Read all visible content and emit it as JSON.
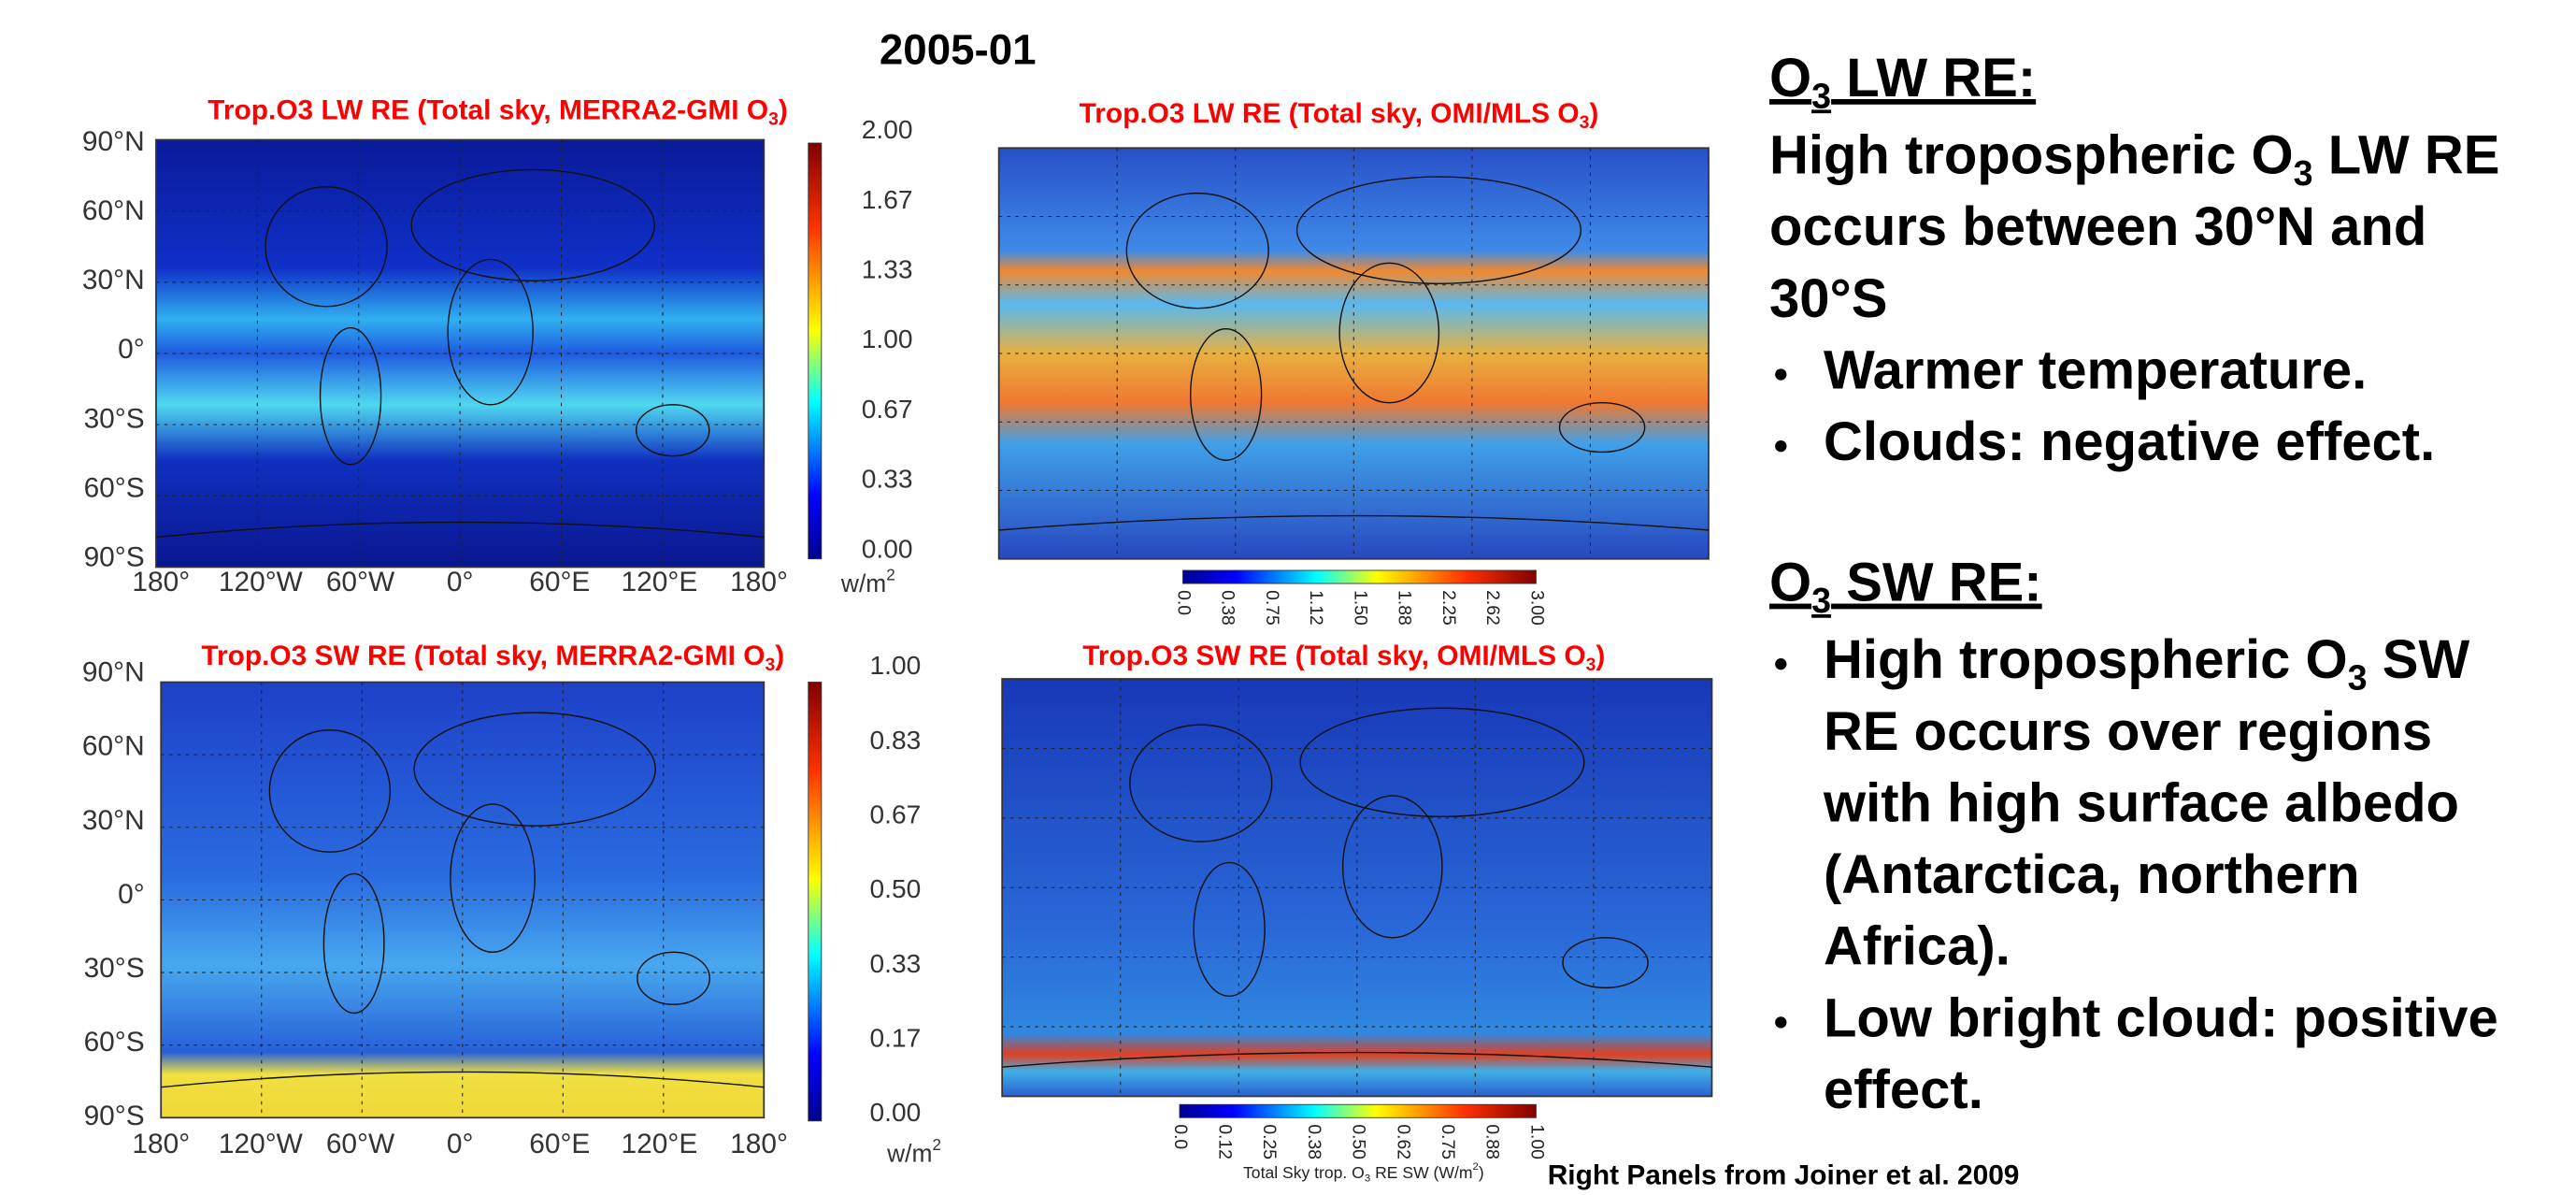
{
  "title": "2005-01",
  "panels": [
    {
      "title": [
        "Trop.O3 LW RE (Total sky, MERRA2-GMI O",
        {
          "sub": "3"
        },
        ")"
      ],
      "lat_labels": [
        "90°N",
        "60°N",
        "30°N",
        "0°",
        "30°S",
        "60°S",
        "90°S"
      ],
      "lon_labels": [
        "180°",
        "120°W",
        "60°W",
        "0°",
        "60°E",
        "120°E",
        "180°"
      ],
      "colorbar_ticks": [
        "2.00",
        "1.67",
        "1.33",
        "1.00",
        "0.67",
        "0.33",
        "0.00"
      ],
      "unit": [
        "w/m",
        {
          "sup": "2"
        }
      ]
    },
    {
      "title": [
        "Trop.O3 LW RE (Total sky, OMI/MLS O",
        {
          "sub": "3"
        },
        ")"
      ],
      "colorbar_ticks": [
        "0.0",
        "0.38",
        "0.75",
        "1.12",
        "1.50",
        "1.88",
        "2.25",
        "2.62",
        "3.00"
      ]
    },
    {
      "title": [
        "Trop.O3 SW RE (Total sky, MERRA2-GMI O",
        {
          "sub": "3"
        },
        ")"
      ],
      "lat_labels": [
        "90°N",
        "60°N",
        "30°N",
        "0°",
        "30°S",
        "60°S",
        "90°S"
      ],
      "lon_labels": [
        "180°",
        "120°W",
        "60°W",
        "0°",
        "60°E",
        "120°E",
        "180°"
      ],
      "colorbar_ticks": [
        "1.00",
        "0.83",
        "0.67",
        "0.50",
        "0.33",
        "0.17",
        "0.00"
      ],
      "unit": [
        "w/m",
        {
          "sup": "2"
        }
      ]
    },
    {
      "title": [
        "Trop.O3 SW RE (Total sky, OMI/MLS O",
        {
          "sub": "3"
        },
        ")"
      ],
      "colorbar_ticks": [
        "0.0",
        "0.12",
        "0.25",
        "0.38",
        "0.50",
        "0.62",
        "0.75",
        "0.88",
        "1.00"
      ],
      "caption": [
        "Total Sky trop. O",
        {
          "sub": "3"
        },
        " RE  SW (W/m",
        {
          "sup": "2"
        },
        ")"
      ]
    }
  ],
  "notes": [
    {
      "heading": [
        "O",
        {
          "sub": "3"
        },
        " LW RE:"
      ],
      "lines": [
        [
          "High tropospheric O",
          {
            "sub": "3"
          },
          " LW RE"
        ],
        [
          "occurs between 30°N and"
        ],
        [
          "30°S"
        ]
      ],
      "bullets": [
        [
          [
            "Warmer temperature."
          ]
        ],
        [
          [
            "Clouds: negative effect."
          ]
        ]
      ]
    },
    {
      "heading": [
        "O",
        {
          "sub": "3"
        },
        " SW RE:"
      ],
      "bullets": [
        [
          [
            "High tropospheric O",
            {
              "sub": "3"
            },
            " SW"
          ],
          [
            "RE occurs over regions"
          ],
          [
            "with high surface albedo"
          ],
          [
            "(Antarctica, northern"
          ],
          [
            "Africa)."
          ]
        ],
        [
          [
            "Low bright cloud: positive"
          ],
          [
            "effect."
          ]
        ]
      ]
    }
  ],
  "credit": "Right Panels from Joiner et al. 2009"
}
